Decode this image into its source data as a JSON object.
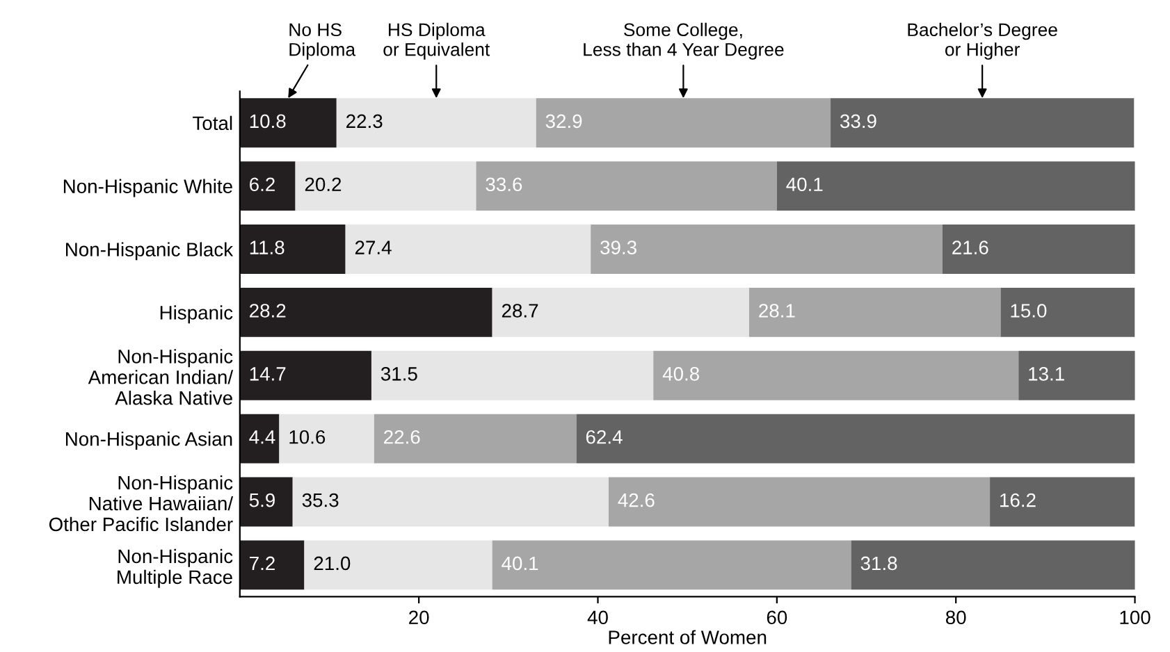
{
  "chart_data": {
    "type": "bar",
    "orientation": "horizontal",
    "stacked": true,
    "legend": "top",
    "grid": false,
    "xlabel": "Percent of Women",
    "xlim": [
      0,
      100
    ],
    "xticks": [
      20,
      40,
      60,
      80,
      100
    ],
    "categories": [
      "Total",
      "Non-Hispanic White",
      "Non-Hispanic Black",
      "Hispanic",
      "Non-Hispanic\nAmerican Indian/\nAlaska Native",
      "Non-Hispanic Asian",
      "Non-Hispanic\nNative Hawaiian/\nOther Pacific Islander",
      "Non-Hispanic\nMultiple Race"
    ],
    "series": [
      {
        "name": "No HS\nDiploma",
        "color": "#231f20",
        "values": [
          10.8,
          6.2,
          11.8,
          28.2,
          14.7,
          4.4,
          5.9,
          7.2
        ],
        "value_labels": [
          "10.8",
          "6.2",
          "11.8",
          "28.2",
          "14.7",
          "4.4",
          "5.9",
          "7.2"
        ]
      },
      {
        "name": "HS Diploma\nor Equivalent",
        "color": "#e6e6e6",
        "values": [
          22.3,
          20.2,
          27.4,
          28.7,
          31.5,
          10.6,
          35.3,
          21.0
        ],
        "value_labels": [
          "22.3",
          "20.2",
          "27.4",
          "28.7",
          "31.5",
          "10.6",
          "35.3",
          "21.0"
        ]
      },
      {
        "name": "Some College,\nLess than 4 Year Degree",
        "color": "#a6a6a6",
        "values": [
          32.9,
          33.6,
          39.3,
          28.1,
          40.8,
          22.6,
          42.6,
          40.1
        ],
        "value_labels": [
          "32.9",
          "33.6",
          "39.3",
          "28.1",
          "40.8",
          "22.6",
          "42.6",
          "40.1"
        ]
      },
      {
        "name": "Bachelor’s Degree\nor Higher",
        "color": "#636363",
        "values": [
          33.9,
          40.1,
          21.6,
          15.0,
          13.1,
          62.4,
          16.2,
          31.8
        ],
        "value_labels": [
          "33.9",
          "40.1",
          "21.6",
          "15.0",
          "13.1",
          "62.4",
          "16.2",
          "31.8"
        ]
      }
    ]
  }
}
